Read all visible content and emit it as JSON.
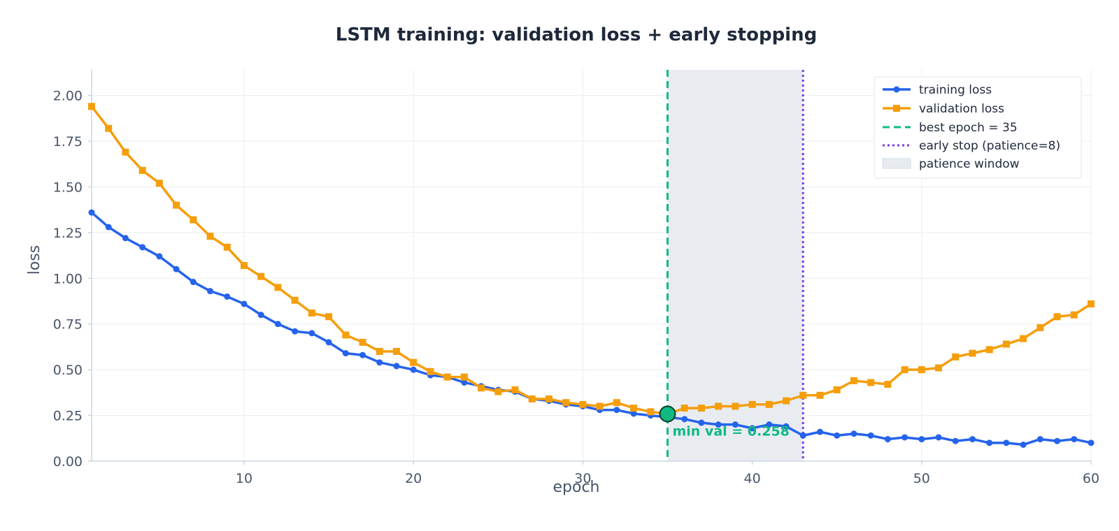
{
  "chart_data": {
    "type": "line",
    "title": "LSTM training: validation loss + early stopping",
    "xlabel": "epoch",
    "ylabel": "loss",
    "xlim": [
      1,
      60
    ],
    "ylim": [
      0,
      2.14
    ],
    "x_ticks": [
      10,
      20,
      30,
      40,
      50,
      60
    ],
    "y_ticks": [
      0.0,
      0.25,
      0.5,
      0.75,
      1.0,
      1.25,
      1.5,
      1.75,
      2.0
    ],
    "y_tick_labels": [
      "0.00",
      "0.25",
      "0.50",
      "0.75",
      "1.00",
      "1.25",
      "1.50",
      "1.75",
      "2.00"
    ],
    "grid": true,
    "legend_position": "top-right",
    "x": [
      1,
      2,
      3,
      4,
      5,
      6,
      7,
      8,
      9,
      10,
      11,
      12,
      13,
      14,
      15,
      16,
      17,
      18,
      19,
      20,
      21,
      22,
      23,
      24,
      25,
      26,
      27,
      28,
      29,
      30,
      31,
      32,
      33,
      34,
      35,
      36,
      37,
      38,
      39,
      40,
      41,
      42,
      43,
      44,
      45,
      46,
      47,
      48,
      49,
      50,
      51,
      52,
      53,
      54,
      55,
      56,
      57,
      58,
      59,
      60
    ],
    "series": [
      {
        "name": "training loss",
        "color": "#2563eb",
        "marker": "circle",
        "values": [
          1.36,
          1.28,
          1.22,
          1.17,
          1.12,
          1.05,
          0.98,
          0.93,
          0.9,
          0.86,
          0.8,
          0.75,
          0.71,
          0.7,
          0.65,
          0.59,
          0.58,
          0.54,
          0.52,
          0.5,
          0.47,
          0.46,
          0.43,
          0.41,
          0.39,
          0.38,
          0.34,
          0.33,
          0.31,
          0.3,
          0.28,
          0.28,
          0.26,
          0.25,
          0.24,
          0.23,
          0.21,
          0.2,
          0.2,
          0.18,
          0.2,
          0.19,
          0.14,
          0.16,
          0.14,
          0.15,
          0.14,
          0.12,
          0.13,
          0.12,
          0.13,
          0.11,
          0.12,
          0.1,
          0.1,
          0.09,
          0.12,
          0.11,
          0.12,
          0.1
        ]
      },
      {
        "name": "validation loss",
        "color": "#f59e0b",
        "marker": "square",
        "values": [
          1.94,
          1.82,
          1.69,
          1.59,
          1.52,
          1.4,
          1.32,
          1.23,
          1.17,
          1.07,
          1.01,
          0.95,
          0.88,
          0.81,
          0.79,
          0.69,
          0.65,
          0.6,
          0.6,
          0.54,
          0.49,
          0.46,
          0.46,
          0.4,
          0.38,
          0.39,
          0.34,
          0.34,
          0.32,
          0.31,
          0.3,
          0.32,
          0.29,
          0.27,
          0.258,
          0.29,
          0.29,
          0.3,
          0.3,
          0.31,
          0.31,
          0.33,
          0.36,
          0.36,
          0.39,
          0.44,
          0.43,
          0.42,
          0.5,
          0.5,
          0.51,
          0.57,
          0.59,
          0.61,
          0.64,
          0.67,
          0.73,
          0.79,
          0.8,
          0.86
        ]
      }
    ],
    "best_epoch": {
      "x": 35,
      "label": "best epoch = 35",
      "color": "#10b981"
    },
    "early_stop": {
      "x": 43,
      "label": "early stop (patience=8)",
      "color": "#7c3aed"
    },
    "patience_window": {
      "x_start": 35,
      "x_end": 43,
      "label": "patience window",
      "color": "#e8ecf1"
    },
    "annotation": {
      "text": "min val = 0.258",
      "x": 35,
      "y": 0.258,
      "color": "#10b981"
    }
  }
}
